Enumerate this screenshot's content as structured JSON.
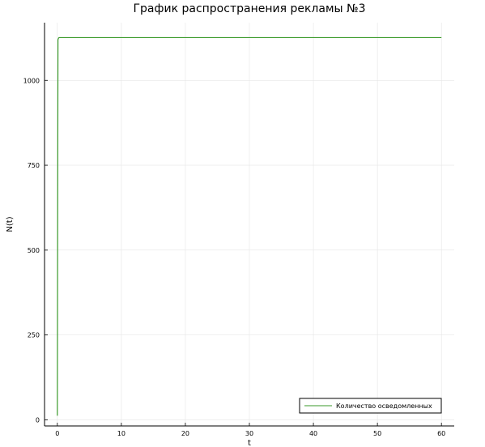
{
  "chart_data": {
    "type": "line",
    "title": "График распространения рекламы №3",
    "xlabel": "t",
    "ylabel": "N(t)",
    "xlim": [
      -2,
      62
    ],
    "ylim": [
      -18,
      1170
    ],
    "xticks": [
      0,
      10,
      20,
      30,
      40,
      50,
      60
    ],
    "yticks": [
      0,
      250,
      500,
      750,
      1000
    ],
    "x_tick_labels": [
      "0",
      "10",
      "20",
      "30",
      "40",
      "50",
      "60"
    ],
    "y_tick_labels": [
      "0",
      "250",
      "500",
      "750",
      "1000"
    ],
    "grid": true,
    "legend_position": "bottom-right",
    "series": [
      {
        "name": "Количество осведомленных",
        "color": "#3a9a2a",
        "x": [
          0,
          0.1,
          0.2,
          0.3,
          60
        ],
        "y": [
          12,
          1120,
          1125,
          1126,
          1126
        ]
      }
    ]
  }
}
